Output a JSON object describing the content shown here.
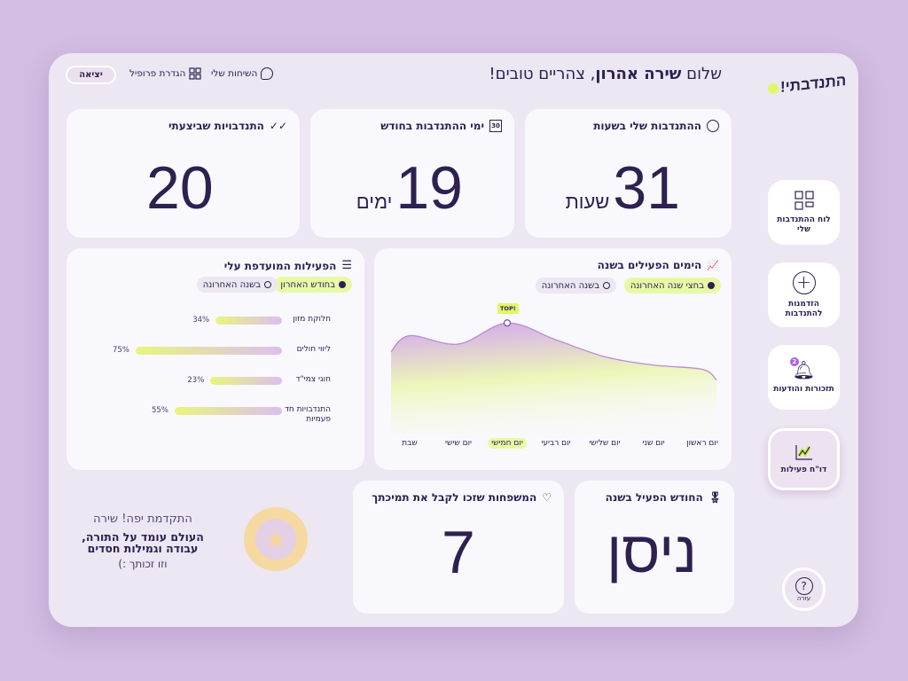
{
  "header": {
    "logo": "התנדבתי!",
    "greeting_prefix": "שלום ",
    "user_name": "שירה אהרון",
    "greeting_suffix": ", צהריים טובים!",
    "nav": [
      {
        "label": "השיחות שלי",
        "icon": "chat-icon"
      },
      {
        "label": "הגדרת פרופיל",
        "icon": "grid-icon"
      }
    ],
    "logout": "יציאה"
  },
  "stats": {
    "hours": {
      "title": "ההתנדבות שלי בשעות",
      "value": "31",
      "unit": "שעות",
      "icon": "alarm-clock-icon"
    },
    "days": {
      "title": "ימי ההתנדבות בחודש",
      "value": "19",
      "unit": "ימים",
      "icon": "calendar-icon",
      "icon_text": "30"
    },
    "completed": {
      "title": "התנדבויות שביצעתי",
      "value": "20",
      "icon": "double-check-icon"
    }
  },
  "preferred": {
    "title": "הפעילות המועדפת עלי",
    "filters": [
      {
        "label": "בחודש האחרון",
        "selected": true
      },
      {
        "label": "בשנה האחרונה",
        "selected": false
      }
    ],
    "items": [
      {
        "label": "חלוקת מזון",
        "percent": 34,
        "text": "34%"
      },
      {
        "label": "ליווי חולים",
        "percent": 75,
        "text": "75%"
      },
      {
        "label": "חוגי צמי\"ד",
        "percent": 23,
        "text": "23%"
      },
      {
        "label": "התנדבויות חד פעמיות",
        "percent": 55,
        "text": "55%"
      }
    ]
  },
  "chart_data": {
    "type": "area",
    "title": "הימים הפעילים בשנה",
    "filters": [
      {
        "label": "בחצי שנה האחרונה",
        "selected": true
      },
      {
        "label": "בשנה האחרונה",
        "selected": false
      }
    ],
    "categories": [
      "יום ראשון",
      "יום שני",
      "יום שלישי",
      "יום רביעי",
      "יום חמישי",
      "יום שישי",
      "שבת"
    ],
    "values": [
      30,
      35,
      45,
      65,
      85,
      60,
      70
    ],
    "ylim": [
      0,
      100
    ],
    "highlight_index": 4,
    "highlight_label": "TOP!",
    "grid": false
  },
  "active_month": {
    "title": "החודש הפעיל בשנה",
    "value": "ניסן",
    "icon": "medal-icon"
  },
  "families": {
    "title": "המשפחות שזכו לקבל את תמיכתך",
    "value": "7",
    "icon": "heart-icon"
  },
  "award": {
    "line1": "התקדמת יפה! שירה",
    "line2": "העולם עומד על התורה,",
    "line3": "עבודה וגמילות חסדים",
    "line4": "וזו זכותך :)"
  },
  "sidebar": {
    "items": [
      {
        "label": "לוח ההתנדבות שלי"
      },
      {
        "label": "הזדמנות להתנדבות"
      },
      {
        "label": "תזכורות והודעות",
        "badge": "2"
      },
      {
        "label": "דו\"ח פעילות",
        "active": true
      }
    ],
    "help": "עזרה"
  },
  "colors": {
    "accent_lime": "#e8f9a6",
    "accent_purple": "#c99be8",
    "text": "#2d2150"
  }
}
